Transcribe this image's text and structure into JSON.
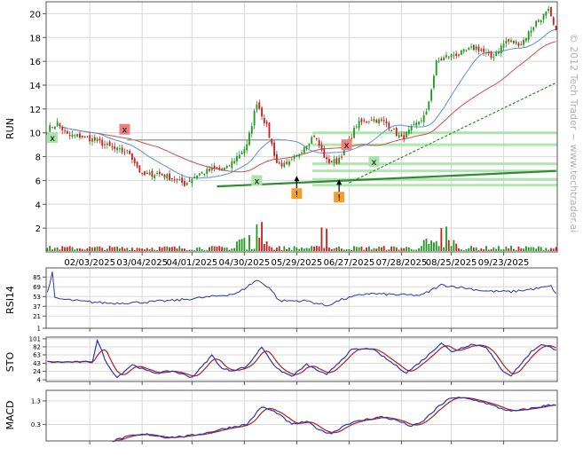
{
  "watermark": "© 2012 Tech Trader ~ www.techtrader.ai",
  "colors": {
    "up": "#1f9a1f",
    "down": "#cc1f1f",
    "grid": "#d8d8d8",
    "ma_fast": "#5a8fd0",
    "ma_slow": "#c85050",
    "indicator_line": "#3333aa",
    "indicator_signal": "#aa2222",
    "support": "#2e8b2e",
    "support_band": "#9be39b",
    "resistance": "#a0a0a0",
    "sell_marker": "#f08080",
    "buy_marker": "#a8e6a8",
    "alert_marker": "#f0a030"
  },
  "chart_data": [
    {
      "type": "candlestick",
      "panel": "price",
      "ylabel": "RUN",
      "yticks": [
        2,
        4,
        6,
        8,
        10,
        12,
        14,
        16,
        18,
        20
      ],
      "ylim": [
        0,
        21
      ],
      "x_date_labels": [
        "02/03/2025",
        "03/04/2025",
        "04/01/2025",
        "04/30/2025",
        "05/29/2025",
        "06/27/2025",
        "07/28/2025",
        "08/25/2025",
        "09/23/2025"
      ],
      "x_date_label_index": [
        17,
        38,
        58,
        79,
        100,
        121,
        142,
        162,
        183
      ],
      "n_bars": 205,
      "close_anchors": [
        [
          0,
          10.3
        ],
        [
          4,
          10.8
        ],
        [
          8,
          9.8
        ],
        [
          14,
          9.7
        ],
        [
          20,
          9.3
        ],
        [
          27,
          8.6
        ],
        [
          33,
          8.3
        ],
        [
          38,
          6.4
        ],
        [
          44,
          6.6
        ],
        [
          50,
          6.2
        ],
        [
          55,
          5.7
        ],
        [
          60,
          6.5
        ],
        [
          66,
          6.9
        ],
        [
          72,
          7.0
        ],
        [
          76,
          8.0
        ],
        [
          80,
          8.9
        ],
        [
          84,
          12.6
        ],
        [
          88,
          10.5
        ],
        [
          92,
          7.5
        ],
        [
          96,
          7.2
        ],
        [
          100,
          8.0
        ],
        [
          103,
          8.9
        ],
        [
          107,
          9.8
        ],
        [
          112,
          7.6
        ],
        [
          116,
          7.6
        ],
        [
          120,
          8.8
        ],
        [
          124,
          10.7
        ],
        [
          130,
          11.2
        ],
        [
          136,
          10.8
        ],
        [
          142,
          9.5
        ],
        [
          146,
          10.3
        ],
        [
          152,
          11.6
        ],
        [
          156,
          15.9
        ],
        [
          160,
          16.4
        ],
        [
          166,
          16.7
        ],
        [
          172,
          17.2
        ],
        [
          178,
          16.3
        ],
        [
          184,
          17.7
        ],
        [
          190,
          17.5
        ],
        [
          196,
          19.3
        ],
        [
          201,
          20.2
        ],
        [
          204,
          18.4
        ]
      ],
      "volume_spike_index": [
        84,
        86,
        110,
        112,
        158,
        160
      ],
      "moving_averages": [
        {
          "period": "fast",
          "color_key": "ma_fast"
        },
        {
          "period": "slow",
          "color_key": "ma_slow"
        }
      ],
      "trendlines": [
        {
          "kind": "support",
          "from": [
            68,
            5.5
          ],
          "to": [
            204,
            6.8
          ]
        },
        {
          "kind": "support-dashed",
          "from": [
            121,
            5.8
          ],
          "to": [
            204,
            14.2
          ]
        },
        {
          "kind": "resistance",
          "from": [
            32,
            9.4
          ],
          "to": [
            96,
            9.4
          ]
        }
      ],
      "support_bands": [
        10.0,
        9.0,
        7.4,
        6.8,
        6.1,
        5.6
      ],
      "markers": [
        {
          "label": "x",
          "kind": "buy",
          "index": 2,
          "price": 9.6
        },
        {
          "label": "x",
          "kind": "sell",
          "index": 31,
          "price": 10.3
        },
        {
          "label": "x",
          "kind": "buy",
          "index": 84,
          "price": 6.0
        },
        {
          "label": "x",
          "kind": "sell",
          "index": 120,
          "price": 9.0
        },
        {
          "label": "x",
          "kind": "buy",
          "index": 131,
          "price": 7.6
        },
        {
          "label": "!",
          "kind": "alert",
          "index": 100,
          "price": 4.9
        },
        {
          "label": "!",
          "kind": "alert",
          "index": 117,
          "price": 4.6
        }
      ]
    },
    {
      "type": "line",
      "panel": "rsi",
      "ylabel": "RSI14",
      "yticks": [
        1,
        21,
        37,
        53,
        69,
        85
      ],
      "ylim": [
        1,
        100
      ],
      "anchors": [
        [
          0,
          60
        ],
        [
          2,
          92
        ],
        [
          3,
          50
        ],
        [
          14,
          45
        ],
        [
          26,
          42
        ],
        [
          40,
          44
        ],
        [
          52,
          47
        ],
        [
          64,
          52
        ],
        [
          76,
          58
        ],
        [
          84,
          80
        ],
        [
          89,
          68
        ],
        [
          93,
          46
        ],
        [
          104,
          46
        ],
        [
          112,
          38
        ],
        [
          118,
          48
        ],
        [
          128,
          58
        ],
        [
          140,
          56
        ],
        [
          150,
          55
        ],
        [
          158,
          72
        ],
        [
          166,
          68
        ],
        [
          176,
          62
        ],
        [
          186,
          61
        ],
        [
          196,
          66
        ],
        [
          202,
          70
        ],
        [
          204,
          58
        ]
      ]
    },
    {
      "type": "line",
      "panel": "sto",
      "ylabel": "STO",
      "yticks": [
        4,
        24,
        43,
        63,
        82,
        101
      ],
      "ylim": [
        0,
        105
      ],
      "anchors": [
        [
          0,
          46
        ],
        [
          18,
          46
        ],
        [
          20,
          98
        ],
        [
          24,
          40
        ],
        [
          28,
          10
        ],
        [
          34,
          40
        ],
        [
          40,
          25
        ],
        [
          44,
          20
        ],
        [
          50,
          25
        ],
        [
          58,
          10
        ],
        [
          62,
          35
        ],
        [
          66,
          62
        ],
        [
          70,
          30
        ],
        [
          74,
          26
        ],
        [
          80,
          35
        ],
        [
          86,
          82
        ],
        [
          92,
          30
        ],
        [
          98,
          12
        ],
        [
          104,
          40
        ],
        [
          112,
          15
        ],
        [
          116,
          40
        ],
        [
          122,
          75
        ],
        [
          130,
          78
        ],
        [
          138,
          45
        ],
        [
          144,
          20
        ],
        [
          152,
          58
        ],
        [
          158,
          92
        ],
        [
          162,
          70
        ],
        [
          170,
          88
        ],
        [
          176,
          82
        ],
        [
          182,
          28
        ],
        [
          186,
          14
        ],
        [
          194,
          70
        ],
        [
          198,
          88
        ],
        [
          204,
          76
        ]
      ]
    },
    {
      "type": "line",
      "panel": "macd",
      "ylabel": "MACD",
      "yticks": [
        0.3,
        1.3
      ],
      "ylim": [
        -0.4,
        1.75
      ],
      "anchors": [
        [
          26,
          -0.4
        ],
        [
          30,
          -0.28
        ],
        [
          34,
          -0.18
        ],
        [
          40,
          -0.12
        ],
        [
          48,
          -0.25
        ],
        [
          56,
          -0.2
        ],
        [
          64,
          -0.05
        ],
        [
          72,
          0.15
        ],
        [
          80,
          0.3
        ],
        [
          86,
          1.05
        ],
        [
          92,
          0.8
        ],
        [
          98,
          0.3
        ],
        [
          104,
          0.42
        ],
        [
          110,
          0.02
        ],
        [
          114,
          -0.08
        ],
        [
          120,
          0.32
        ],
        [
          128,
          0.52
        ],
        [
          134,
          0.62
        ],
        [
          140,
          0.48
        ],
        [
          146,
          0.22
        ],
        [
          150,
          0.38
        ],
        [
          156,
          0.98
        ],
        [
          162,
          1.45
        ],
        [
          168,
          1.4
        ],
        [
          174,
          1.28
        ],
        [
          180,
          1.05
        ],
        [
          186,
          0.85
        ],
        [
          194,
          0.98
        ],
        [
          200,
          1.1
        ],
        [
          204,
          1.15
        ]
      ]
    }
  ]
}
